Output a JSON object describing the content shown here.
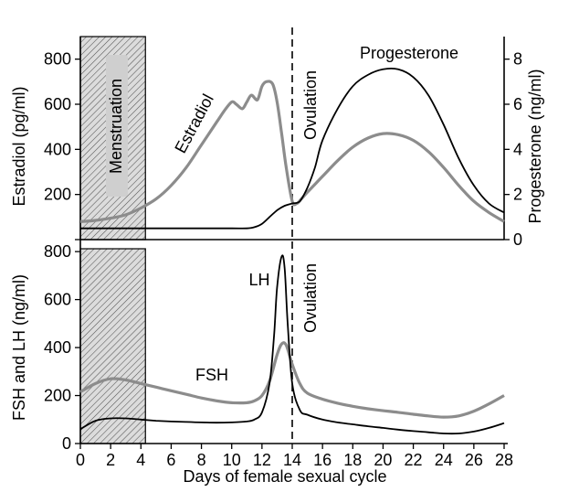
{
  "chart_data": [
    {
      "type": "line",
      "panel": "top",
      "ylabel_left": "Estradiol (pg/ml)",
      "ylabel_right": "Progesterone (ng/ml)",
      "xlim": [
        0,
        28
      ],
      "ylim_left": [
        0,
        900
      ],
      "ylim_right": [
        0,
        9
      ],
      "yticks_left": [
        0,
        200,
        400,
        600,
        800
      ],
      "yticks_right": [
        0,
        2,
        4,
        6,
        8
      ],
      "series": [
        {
          "name": "Estradiol",
          "axis": "left",
          "color": "#8c8c8c",
          "x": [
            0,
            1,
            2,
            3,
            4,
            5,
            6,
            7,
            8,
            9,
            9.5,
            10,
            10.3,
            10.7,
            11,
            11.3,
            11.7,
            12,
            12.3,
            12.7,
            13,
            13.3,
            13.6,
            14,
            14.3,
            14.6,
            15,
            16,
            17,
            18,
            19,
            20,
            21,
            22,
            23,
            24,
            25,
            26,
            27,
            28
          ],
          "y": [
            80,
            85,
            95,
            110,
            140,
            180,
            240,
            320,
            420,
            520,
            570,
            610,
            600,
            580,
            610,
            640,
            620,
            680,
            700,
            690,
            610,
            470,
            320,
            170,
            160,
            180,
            210,
            280,
            350,
            410,
            450,
            470,
            465,
            440,
            390,
            320,
            240,
            170,
            120,
            80
          ]
        },
        {
          "name": "Progesterone",
          "axis": "right",
          "color": "#000000",
          "x": [
            0,
            2,
            4,
            6,
            8,
            10,
            11,
            11.5,
            12,
            12.5,
            13,
            13.5,
            14,
            14.5,
            15,
            15.5,
            16,
            17,
            18,
            19,
            20,
            21,
            22,
            23,
            24,
            25,
            26,
            27,
            28
          ],
          "y": [
            0.5,
            0.5,
            0.5,
            0.5,
            0.5,
            0.5,
            0.5,
            0.55,
            0.7,
            1.0,
            1.3,
            1.5,
            1.6,
            1.7,
            2.3,
            3.2,
            4.4,
            5.8,
            6.8,
            7.3,
            7.55,
            7.55,
            7.2,
            6.4,
            5.1,
            3.6,
            2.4,
            1.6,
            1.2
          ]
        }
      ],
      "annotations": [
        "Menstruation",
        "Ovulation",
        "Estradiol",
        "Progesterone"
      ]
    },
    {
      "type": "line",
      "panel": "bottom",
      "ylabel": "FSH and LH (ng/ml)",
      "xlabel": "Days of female sexual cycle",
      "xlim": [
        0,
        28
      ],
      "ylim": [
        0,
        850
      ],
      "yticks": [
        0,
        200,
        400,
        600,
        800
      ],
      "xticks": [
        0,
        2,
        4,
        6,
        8,
        10,
        12,
        14,
        16,
        18,
        20,
        22,
        24,
        26,
        28
      ],
      "series": [
        {
          "name": "FSH",
          "color": "#8c8c8c",
          "x": [
            0,
            1,
            2,
            3,
            4,
            5,
            6,
            7,
            8,
            9,
            10,
            11,
            11.5,
            12,
            12.5,
            13,
            13.3,
            13.6,
            14,
            14.5,
            15,
            16,
            17,
            18,
            19,
            20,
            21,
            22,
            23,
            24,
            25,
            26,
            27,
            28
          ],
          "y": [
            215,
            250,
            270,
            265,
            250,
            235,
            220,
            205,
            190,
            178,
            170,
            170,
            178,
            200,
            260,
            370,
            415,
            410,
            330,
            250,
            210,
            185,
            168,
            155,
            145,
            137,
            130,
            122,
            115,
            110,
            115,
            135,
            165,
            200
          ]
        },
        {
          "name": "LH",
          "color": "#000000",
          "x": [
            0,
            1,
            2,
            3,
            4,
            5,
            6,
            7,
            8,
            9,
            10,
            11,
            11.5,
            12,
            12.5,
            12.8,
            13,
            13.3,
            13.5,
            13.7,
            14,
            14.5,
            15,
            16,
            17,
            18,
            19,
            20,
            21,
            22,
            23,
            24,
            25,
            26,
            27,
            28
          ],
          "y": [
            60,
            95,
            105,
            105,
            100,
            95,
            92,
            90,
            88,
            87,
            88,
            92,
            100,
            130,
            250,
            450,
            650,
            780,
            730,
            500,
            250,
            140,
            120,
            100,
            88,
            80,
            72,
            65,
            58,
            52,
            47,
            42,
            42,
            50,
            65,
            85
          ]
        }
      ],
      "annotations": [
        "LH",
        "FSH",
        "Ovulation"
      ]
    }
  ],
  "labels": {
    "menstruation": "Menstruation",
    "ovulation_top": "Ovulation",
    "ovulation_bottom": "Ovulation",
    "estradiol": "Estradiol",
    "progesterone": "Progesterone",
    "lh": "LH",
    "fsh": "FSH",
    "ylabel_top_left": "Estradiol (pg/ml)",
    "ylabel_top_right": "Progesterone (ng/ml)",
    "ylabel_bottom": "FSH and LH (ng/ml)",
    "xlabel": "Days of female sexual cycle"
  }
}
